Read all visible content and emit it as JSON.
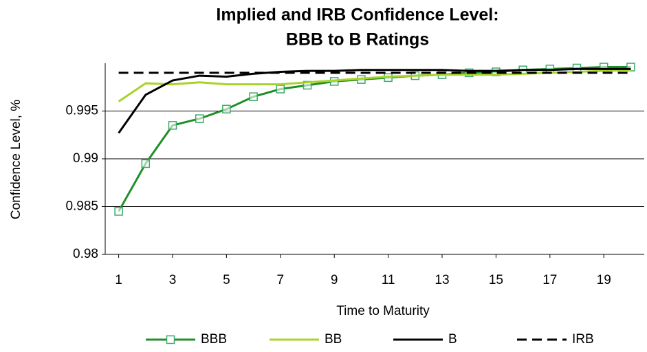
{
  "chart_data": {
    "type": "line",
    "title": [
      "Implied and IRB Confidence Level:",
      "BBB to B Ratings"
    ],
    "x_label": "Time to Maturity",
    "y_label": "Confidence Level, %",
    "x": [
      1,
      2,
      3,
      4,
      5,
      6,
      7,
      8,
      9,
      10,
      11,
      12,
      13,
      14,
      15,
      16,
      17,
      18,
      19,
      20
    ],
    "xlim": [
      0.5,
      20.5
    ],
    "xticks": [
      1,
      3,
      5,
      7,
      9,
      11,
      13,
      15,
      17,
      19
    ],
    "ylim": [
      0.98,
      1.0
    ],
    "yticks": [
      0.98,
      0.985,
      0.99,
      0.995
    ],
    "grid": true,
    "legend": "bottom",
    "series": [
      {
        "name": "BBB",
        "color": "#1f8f2a",
        "marker": "square",
        "marker_color": "#3aa86a",
        "values": [
          0.9845,
          0.9895,
          0.9935,
          0.9942,
          0.9952,
          0.9965,
          0.9973,
          0.9977,
          0.9981,
          0.9983,
          0.9985,
          0.9987,
          0.9988,
          0.999,
          0.9991,
          0.9993,
          0.9994,
          0.9995,
          0.9996,
          0.9996
        ]
      },
      {
        "name": "BB",
        "color": "#a8d42a",
        "values": [
          0.996,
          0.9979,
          0.9978,
          0.998,
          0.9978,
          0.9978,
          0.9978,
          0.998,
          0.9982,
          0.9984,
          0.9986,
          0.9987,
          0.9988,
          0.9988,
          0.9988,
          0.9989,
          0.999,
          0.9991,
          0.9992,
          0.9993
        ]
      },
      {
        "name": "B",
        "color": "#000000",
        "values": [
          0.9927,
          0.9967,
          0.9982,
          0.9987,
          0.9986,
          0.9989,
          0.9991,
          0.9992,
          0.9992,
          0.9993,
          0.9993,
          0.9993,
          0.9993,
          0.9992,
          0.9992,
          0.9993,
          0.9993,
          0.9994,
          0.9994,
          0.9994
        ]
      },
      {
        "name": "IRB",
        "color": "#000000",
        "dash": "dashed",
        "values": [
          0.999,
          0.999,
          0.999,
          0.999,
          0.999,
          0.999,
          0.999,
          0.999,
          0.999,
          0.999,
          0.999,
          0.999,
          0.999,
          0.999,
          0.999,
          0.999,
          0.999,
          0.999,
          0.999,
          0.999
        ]
      }
    ]
  }
}
